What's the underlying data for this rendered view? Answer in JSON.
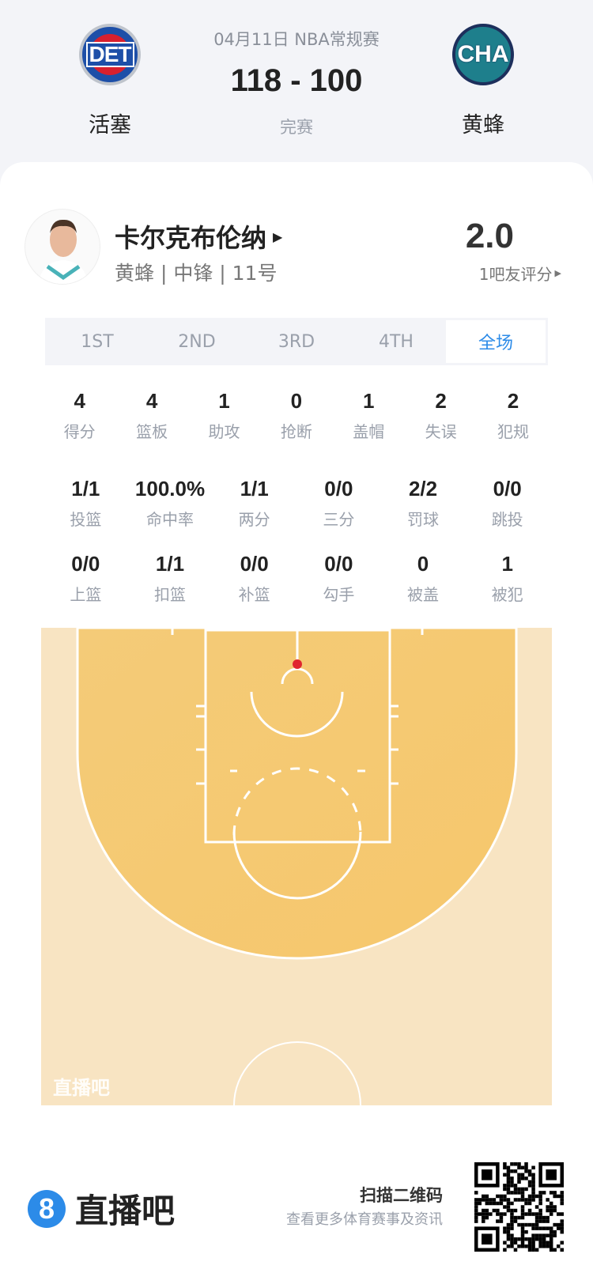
{
  "header": {
    "date": "04月11日 NBA常规赛",
    "score": "118 - 100",
    "status": "完赛",
    "home": {
      "abbr": "DET",
      "name": "活塞"
    },
    "away": {
      "abbr": "CHA",
      "name": "黄蜂"
    }
  },
  "player": {
    "name": "卡尔克布伦纳",
    "info": "黄蜂 | 中锋 | 11号",
    "rating": "2.0",
    "rating_label": "1吧友评分"
  },
  "tabs": [
    {
      "label": "1ST"
    },
    {
      "label": "2ND"
    },
    {
      "label": "3RD"
    },
    {
      "label": "4TH"
    },
    {
      "label": "全场",
      "active": true
    }
  ],
  "stats_row1": [
    {
      "v": "4",
      "l": "得分"
    },
    {
      "v": "4",
      "l": "篮板"
    },
    {
      "v": "1",
      "l": "助攻"
    },
    {
      "v": "0",
      "l": "抢断"
    },
    {
      "v": "1",
      "l": "盖帽"
    },
    {
      "v": "2",
      "l": "失误"
    },
    {
      "v": "2",
      "l": "犯规"
    }
  ],
  "stats_row2": [
    {
      "v": "1/1",
      "l": "投篮"
    },
    {
      "v": "100.0%",
      "l": "命中率"
    },
    {
      "v": "1/1",
      "l": "两分"
    },
    {
      "v": "0/0",
      "l": "三分"
    },
    {
      "v": "2/2",
      "l": "罚球"
    },
    {
      "v": "0/0",
      "l": "跳投"
    }
  ],
  "stats_row3": [
    {
      "v": "0/0",
      "l": "上篮"
    },
    {
      "v": "1/1",
      "l": "扣篮"
    },
    {
      "v": "0/0",
      "l": "补篮"
    },
    {
      "v": "0/0",
      "l": "勾手"
    },
    {
      "v": "0",
      "l": "被盖"
    },
    {
      "v": "1",
      "l": "被犯"
    }
  ],
  "court": {
    "watermark": "直播吧",
    "shots": [
      {
        "result": "made",
        "type": "dunk",
        "color": "#e0262f"
      }
    ]
  },
  "footer": {
    "brand": "直播吧",
    "brand_icon": "8",
    "scan": "扫描二维码",
    "sub": "查看更多体育赛事及资讯"
  },
  "colors": {
    "accent": "#2c8be8",
    "court_outer": "#f8e4c2",
    "court_inner": "#f5c870"
  }
}
